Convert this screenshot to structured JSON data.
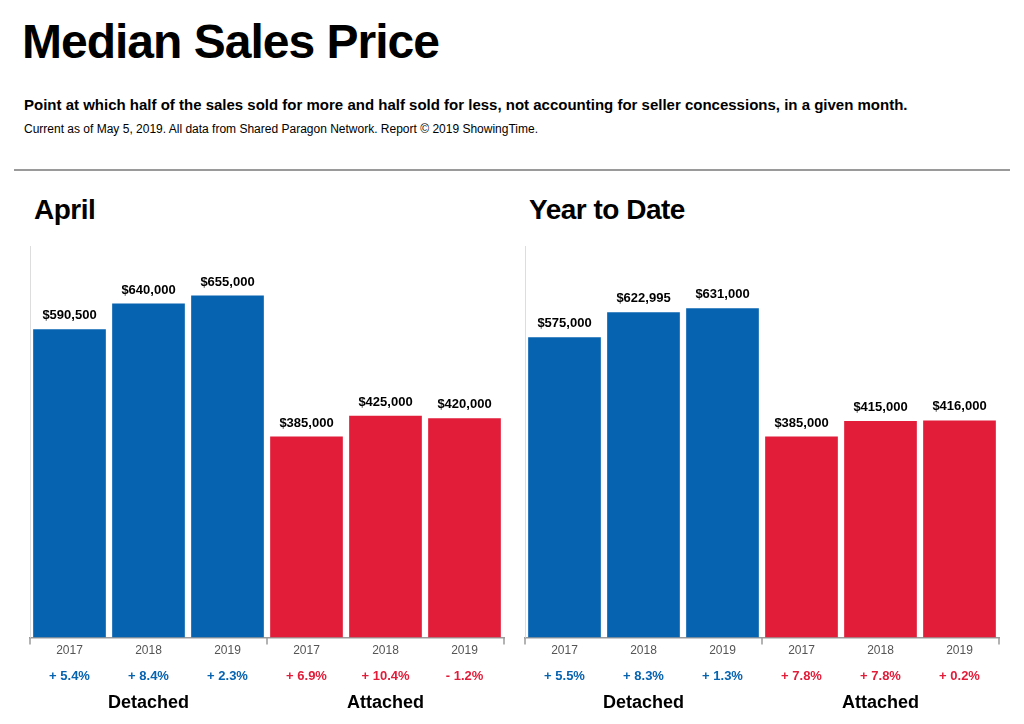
{
  "title": "Median Sales Price",
  "subtitle": "Point at which half of the sales sold for more and half sold for less, not accounting for seller concessions, in a given month.",
  "source": "Current as of May 5, 2019. All data from Shared Paragon Network. Report © 2019 ShowingTime.",
  "chart_data": [
    {
      "type": "bar",
      "title": "April",
      "ylim": [
        0,
        750000
      ],
      "tick_labels": "x",
      "grid": false,
      "data_labels": true,
      "groups": [
        {
          "name": "Detached",
          "color": "#0663b0",
          "categories": [
            "2017",
            "2018",
            "2019"
          ],
          "values": [
            590500,
            640000,
            655000
          ],
          "value_labels": [
            "$590,500",
            "$640,000",
            "$655,000"
          ],
          "changes": [
            5.4,
            8.4,
            2.3
          ],
          "change_labels": [
            "+ 5.4%",
            "+ 8.4%",
            "+ 2.3%"
          ]
        },
        {
          "name": "Attached",
          "color": "#e11d3a",
          "categories": [
            "2017",
            "2018",
            "2019"
          ],
          "values": [
            385000,
            425000,
            420000
          ],
          "value_labels": [
            "$385,000",
            "$425,000",
            "$420,000"
          ],
          "changes": [
            6.9,
            10.4,
            -1.2
          ],
          "change_labels": [
            "+ 6.9%",
            "+ 10.4%",
            "- 1.2%"
          ]
        }
      ]
    },
    {
      "type": "bar",
      "title": "Year to Date",
      "ylim": [
        0,
        750000
      ],
      "tick_labels": "x",
      "grid": false,
      "data_labels": true,
      "groups": [
        {
          "name": "Detached",
          "color": "#0663b0",
          "categories": [
            "2017",
            "2018",
            "2019"
          ],
          "values": [
            575000,
            622995,
            631000
          ],
          "value_labels": [
            "$575,000",
            "$622,995",
            "$631,000"
          ],
          "changes": [
            5.5,
            8.3,
            1.3
          ],
          "change_labels": [
            "+ 5.5%",
            "+ 8.3%",
            "+ 1.3%"
          ]
        },
        {
          "name": "Attached",
          "color": "#e11d3a",
          "categories": [
            "2017",
            "2018",
            "2019"
          ],
          "values": [
            385000,
            415000,
            416000
          ],
          "value_labels": [
            "$385,000",
            "$415,000",
            "$416,000"
          ],
          "changes": [
            7.8,
            7.8,
            0.2
          ],
          "change_labels": [
            "+ 7.8%",
            "+ 7.8%",
            "+ 0.2%"
          ]
        }
      ]
    }
  ]
}
